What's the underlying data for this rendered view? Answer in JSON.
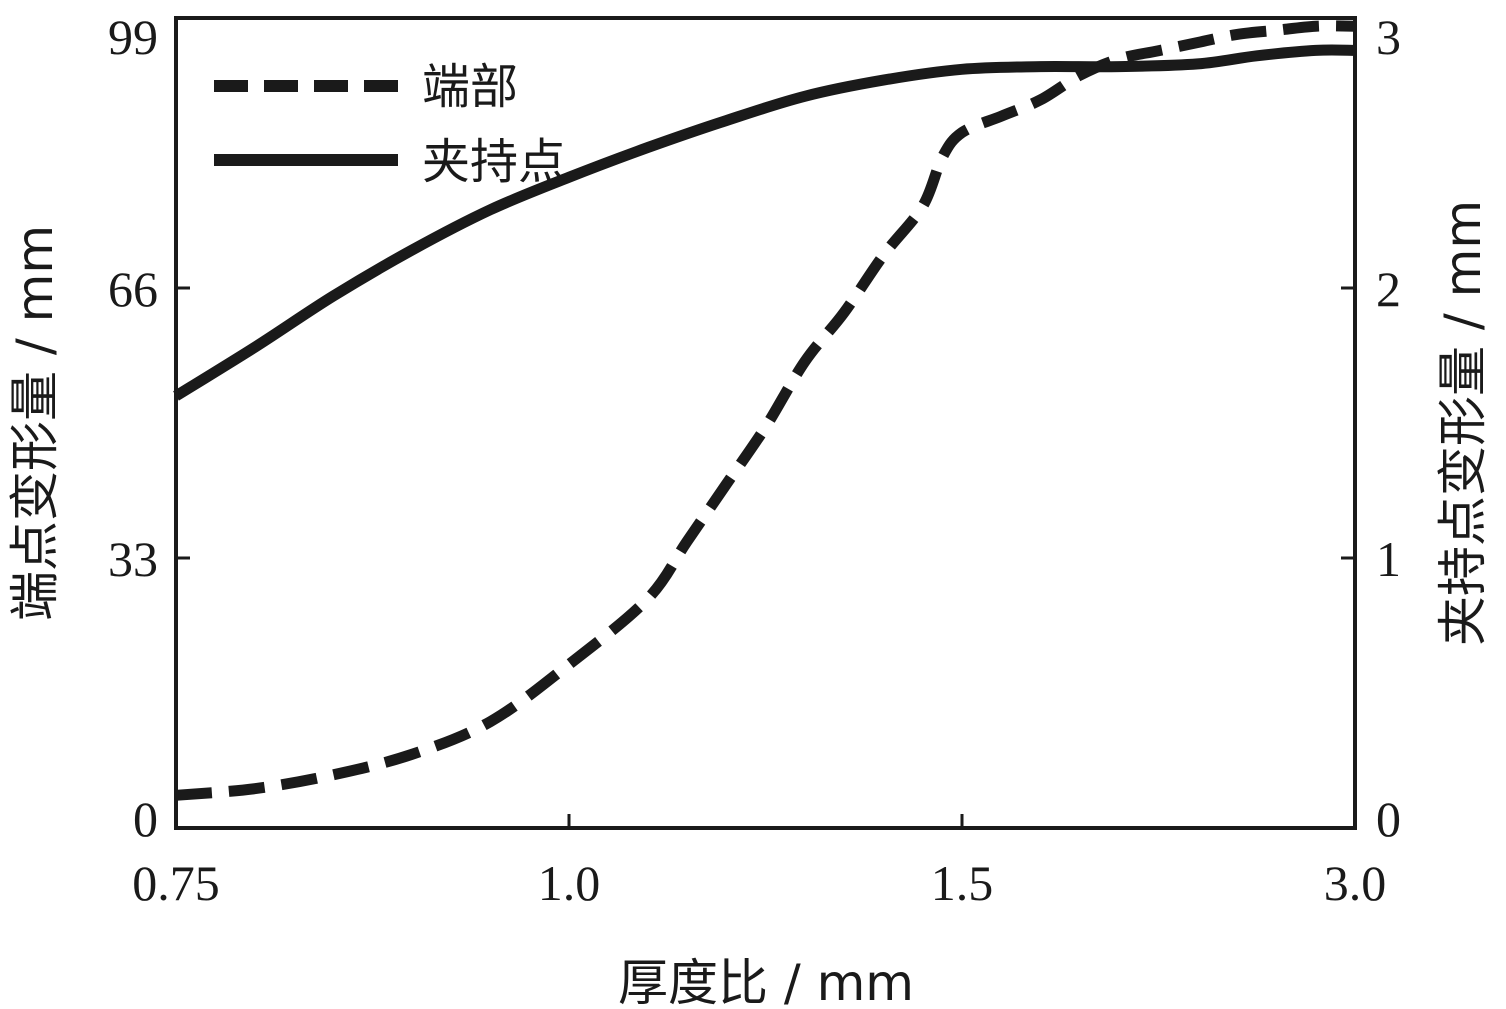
{
  "chart_data": {
    "type": "line",
    "title": "",
    "xlabel": "厚度比 / mm",
    "ylabel_left": "端点变形量 / mm",
    "ylabel_right": "夹持点变形量 / mm",
    "x_ticks": [
      "0.75",
      "1.0",
      "1.5",
      "3.0"
    ],
    "y_left_ticks": [
      "0",
      "33",
      "66",
      "99"
    ],
    "y_right_ticks": [
      "0",
      "1",
      "2",
      "3"
    ],
    "y_left_lim": [
      0,
      99
    ],
    "y_right_lim": [
      0,
      3
    ],
    "grid": false,
    "legend_position": "top-left",
    "line_color": "#1a1a1a",
    "series": [
      {
        "name": "端部",
        "style": "dashed",
        "axis": "left",
        "points": [
          [
            0,
            4
          ],
          [
            0.2,
            4.8
          ],
          [
            0.4,
            6.5
          ],
          [
            0.6,
            9
          ],
          [
            0.8,
            13
          ],
          [
            1.0,
            20
          ],
          [
            1.2,
            28
          ],
          [
            1.3,
            35
          ],
          [
            1.4,
            42
          ],
          [
            1.5,
            49
          ],
          [
            1.6,
            57
          ],
          [
            1.7,
            63
          ],
          [
            1.8,
            70
          ],
          [
            1.9,
            76
          ],
          [
            1.95,
            82
          ],
          [
            2.0,
            85
          ],
          [
            2.1,
            87
          ],
          [
            2.2,
            89
          ],
          [
            2.3,
            92
          ],
          [
            2.4,
            94
          ],
          [
            2.5,
            95
          ],
          [
            2.6,
            96
          ],
          [
            2.7,
            97
          ],
          [
            2.8,
            97.5
          ],
          [
            2.9,
            98
          ],
          [
            3.0,
            98
          ]
        ]
      },
      {
        "name": "夹持点",
        "style": "solid",
        "axis": "right",
        "points": [
          [
            0,
            1.6
          ],
          [
            0.2,
            1.78
          ],
          [
            0.4,
            1.97
          ],
          [
            0.6,
            2.14
          ],
          [
            0.8,
            2.29
          ],
          [
            1.0,
            2.41
          ],
          [
            1.2,
            2.52
          ],
          [
            1.4,
            2.62
          ],
          [
            1.6,
            2.71
          ],
          [
            1.8,
            2.77
          ],
          [
            2.0,
            2.81
          ],
          [
            2.2,
            2.82
          ],
          [
            2.4,
            2.82
          ],
          [
            2.6,
            2.83
          ],
          [
            2.75,
            2.86
          ],
          [
            2.9,
            2.88
          ],
          [
            3.0,
            2.88
          ]
        ]
      }
    ]
  }
}
